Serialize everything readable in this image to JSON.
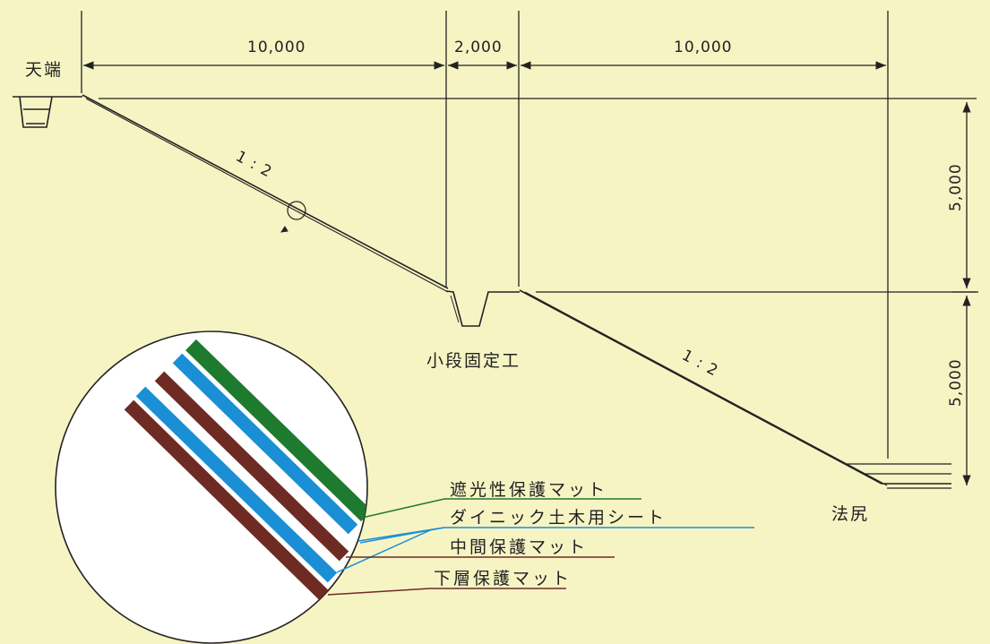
{
  "labels": {
    "crest": "天端",
    "berm_fixing": "小段固定工",
    "toe": "法尻"
  },
  "dimensions": {
    "upper_width": "10,000",
    "berm_width": "2,000",
    "lower_width": "10,000",
    "upper_height": "5,000",
    "lower_height": "5,000"
  },
  "slopes": {
    "upper": "1 : 2",
    "lower": "1 : 2"
  },
  "layers": [
    {
      "label": "遮光性保護マット",
      "color": "#1e7a2e"
    },
    {
      "label": "ダイニック土木用シート",
      "color": "#1a8fd6"
    },
    {
      "label": "中間保護マット",
      "color": "#6e2b24"
    },
    {
      "label": "下層保護マット",
      "color": "#6e2b24"
    }
  ],
  "colors": {
    "background": "#f7f4c4",
    "line": "#222222",
    "sheet_blue": "#1a8fd6",
    "mat_green": "#1e7a2e",
    "mat_brown": "#6e2b24"
  }
}
